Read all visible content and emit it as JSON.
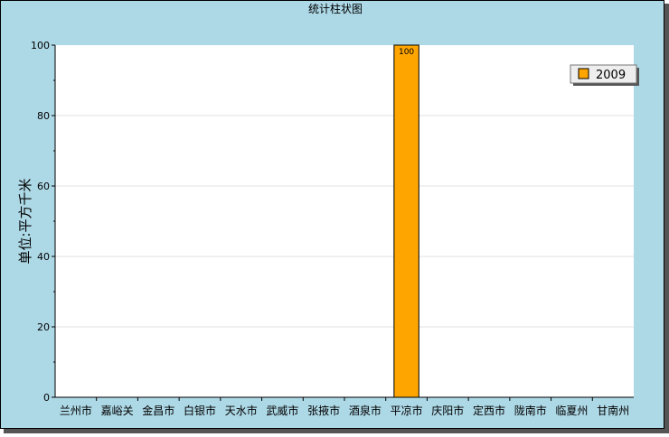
{
  "chart_data": {
    "type": "bar",
    "title": "统计柱状图",
    "ylabel": "单位:平方千米",
    "xlabel": "",
    "categories": [
      "兰州市",
      "嘉峪关",
      "金昌市",
      "白银市",
      "天水市",
      "武威市",
      "张掖市",
      "酒泉市",
      "平凉市",
      "庆阳市",
      "定西市",
      "陇南市",
      "临夏州",
      "甘南州"
    ],
    "series": [
      {
        "name": "2009",
        "values": [
          0,
          0,
          0,
          0,
          0,
          0,
          0,
          0,
          100,
          0,
          0,
          0,
          0,
          0
        ],
        "color": "#FFA500"
      }
    ],
    "data_labels": [
      null,
      null,
      null,
      null,
      null,
      null,
      null,
      null,
      "100",
      null,
      null,
      null,
      null,
      null
    ],
    "ylim": [
      0,
      100
    ],
    "yticks": [
      0,
      20,
      40,
      60,
      80,
      100
    ],
    "grid": true,
    "legend_position": "top-right",
    "colors": {
      "background": "#ADD8E6",
      "plot_background": "#FFFFFF",
      "bar": "#FFA500",
      "gridline": "#E0E0E0",
      "axis": "#000000",
      "shadow": "#555555"
    }
  }
}
